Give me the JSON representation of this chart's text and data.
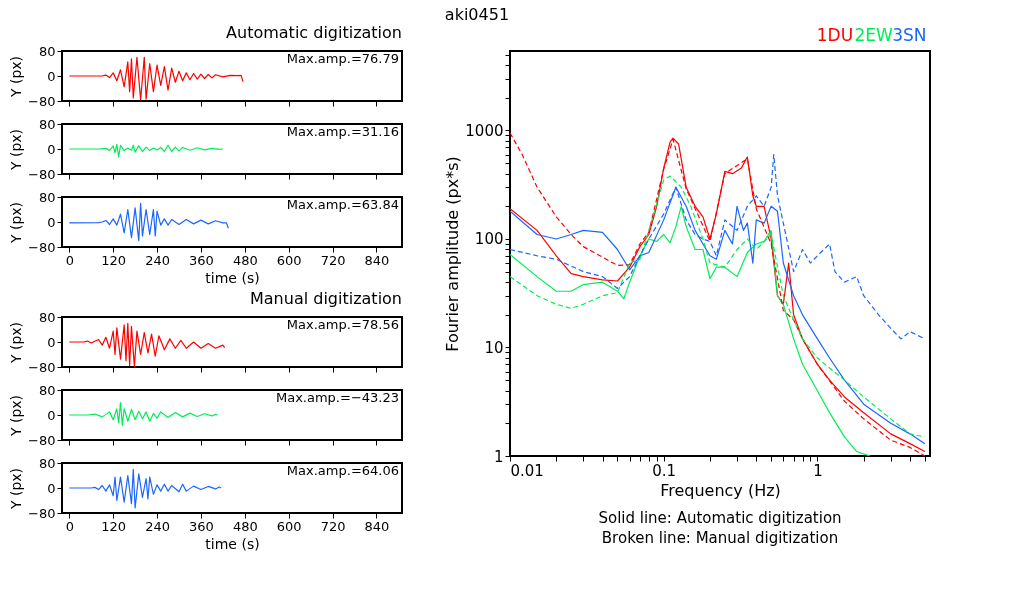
{
  "chart_data": [
    {
      "type": "line",
      "title": "Automatic digitization",
      "ylabel": "Y (px)",
      "annotations": [
        "Max.amp.=76.79"
      ],
      "xlim": [
        -20,
        910
      ],
      "ylim": [
        -80,
        80
      ],
      "xticks": [
        0,
        120,
        240,
        360,
        480,
        600,
        720,
        840
      ],
      "yticks": [
        -80,
        0,
        80
      ],
      "tick_labels": "y",
      "series": [
        {
          "color": "#ff0000",
          "x": [
            0,
            90,
            100,
            110,
            120,
            130,
            140,
            150,
            160,
            165,
            170,
            175,
            185,
            195,
            205,
            210,
            220,
            230,
            240,
            250,
            260,
            270,
            280,
            290,
            300,
            310,
            320,
            330,
            340,
            350,
            360,
            370,
            380,
            390,
            400,
            420,
            440,
            460,
            470,
            475
          ],
          "values": [
            0,
            0,
            3,
            -5,
            10,
            -15,
            20,
            -35,
            45,
            -50,
            55,
            -70,
            60,
            -76,
            60,
            -74,
            40,
            -50,
            35,
            -30,
            30,
            -45,
            25,
            -20,
            15,
            -15,
            10,
            -12,
            8,
            -10,
            6,
            -8,
            5,
            -6,
            4,
            -3,
            2,
            1,
            2,
            -18
          ]
        }
      ]
    },
    {
      "type": "line",
      "ylabel": "Y (px)",
      "annotations": [
        "Max.amp.=31.16"
      ],
      "xlim": [
        -20,
        910
      ],
      "ylim": [
        -80,
        80
      ],
      "xticks": [
        0,
        120,
        240,
        360,
        480,
        600,
        720,
        840
      ],
      "yticks": [
        -80,
        0,
        80
      ],
      "tick_labels": "y",
      "series": [
        {
          "color": "#00ee55",
          "x": [
            0,
            80,
            100,
            110,
            120,
            125,
            130,
            135,
            140,
            150,
            160,
            170,
            175,
            180,
            190,
            200,
            210,
            220,
            230,
            240,
            250,
            260,
            270,
            280,
            290,
            300,
            310,
            330,
            350,
            370,
            390,
            410,
            420
          ],
          "values": [
            0,
            0,
            2,
            -5,
            10,
            -12,
            15,
            -25,
            12,
            -5,
            3,
            -4,
            12,
            -10,
            10,
            -8,
            6,
            -5,
            3,
            -3,
            5,
            -8,
            12,
            -8,
            6,
            -6,
            5,
            -4,
            4,
            -3,
            2,
            -1,
            0
          ]
        }
      ]
    },
    {
      "type": "line",
      "ylabel": "Y (px)",
      "xlabel": "time (s)",
      "annotations": [
        "Max.amp.=63.84"
      ],
      "xlim": [
        -20,
        910
      ],
      "ylim": [
        -80,
        80
      ],
      "xticks": [
        0,
        120,
        240,
        360,
        480,
        600,
        720,
        840
      ],
      "yticks": [
        -80,
        0,
        80
      ],
      "series": [
        {
          "color": "#1a66ff",
          "x": [
            0,
            80,
            90,
            100,
            110,
            120,
            130,
            140,
            150,
            160,
            170,
            180,
            190,
            195,
            200,
            210,
            220,
            230,
            235,
            240,
            250,
            260,
            270,
            280,
            300,
            320,
            340,
            360,
            380,
            400,
            420,
            430,
            435
          ],
          "values": [
            -3,
            -2,
            0,
            5,
            -8,
            10,
            -10,
            25,
            -35,
            40,
            -50,
            45,
            -60,
            60,
            -45,
            40,
            -40,
            40,
            -45,
            35,
            -10,
            10,
            -10,
            8,
            -8,
            8,
            -6,
            6,
            -6,
            4,
            -3,
            -3,
            -20
          ]
        }
      ]
    },
    {
      "type": "line",
      "title": "Manual digitization",
      "ylabel": "Y (px)",
      "annotations": [
        "Max.amp.=78.56"
      ],
      "xlim": [
        -20,
        910
      ],
      "ylim": [
        -80,
        80
      ],
      "xticks": [
        0,
        120,
        240,
        360,
        480,
        600,
        720,
        840
      ],
      "yticks": [
        -80,
        0,
        80
      ],
      "tick_labels": "y",
      "series": [
        {
          "color": "#ff0000",
          "x": [
            0,
            40,
            50,
            60,
            80,
            90,
            100,
            110,
            120,
            125,
            130,
            140,
            150,
            155,
            160,
            165,
            170,
            178,
            185,
            195,
            205,
            215,
            225,
            235,
            245,
            260,
            275,
            290,
            305,
            320,
            340,
            360,
            380,
            400,
            420,
            425
          ],
          "values": [
            0,
            0,
            3,
            -3,
            8,
            -10,
            15,
            -20,
            35,
            -40,
            45,
            -55,
            55,
            -60,
            60,
            -75,
            50,
            -78,
            35,
            -40,
            30,
            -35,
            25,
            -45,
            20,
            -25,
            10,
            -20,
            5,
            -20,
            0,
            -20,
            -5,
            -20,
            -10,
            -18
          ]
        }
      ]
    },
    {
      "type": "line",
      "ylabel": "Y (px)",
      "annotations": [
        "Max.amp.=−43.23"
      ],
      "xlim": [
        -20,
        910
      ],
      "ylim": [
        -80,
        80
      ],
      "xticks": [
        0,
        120,
        240,
        360,
        480,
        600,
        720,
        840
      ],
      "yticks": [
        -80,
        0,
        80
      ],
      "tick_labels": "y",
      "series": [
        {
          "color": "#00ee55",
          "x": [
            0,
            50,
            70,
            90,
            110,
            120,
            130,
            135,
            140,
            145,
            150,
            160,
            170,
            180,
            190,
            200,
            210,
            220,
            230,
            240,
            250,
            270,
            290,
            310,
            330,
            350,
            370,
            390,
            400,
            405
          ],
          "values": [
            0,
            0,
            3,
            -6,
            10,
            -15,
            20,
            -25,
            40,
            -33,
            20,
            -20,
            18,
            -15,
            12,
            -12,
            10,
            -20,
            5,
            -10,
            10,
            -8,
            8,
            -6,
            6,
            -5,
            4,
            -3,
            2,
            0
          ]
        }
      ]
    },
    {
      "type": "line",
      "ylabel": "Y (px)",
      "xlabel": "time (s)",
      "annotations": [
        "Max.amp.=64.06"
      ],
      "xlim": [
        -20,
        910
      ],
      "ylim": [
        -80,
        80
      ],
      "xticks": [
        0,
        120,
        240,
        360,
        480,
        600,
        720,
        840
      ],
      "yticks": [
        -80,
        0,
        80
      ],
      "series": [
        {
          "color": "#1a66ff",
          "x": [
            0,
            60,
            70,
            80,
            90,
            100,
            110,
            120,
            125,
            130,
            140,
            150,
            160,
            170,
            175,
            180,
            190,
            200,
            210,
            215,
            220,
            230,
            240,
            250,
            260,
            270,
            280,
            300,
            310,
            320,
            340,
            360,
            380,
            400,
            410,
            415
          ],
          "values": [
            0,
            0,
            2,
            -5,
            8,
            -10,
            10,
            -25,
            35,
            -40,
            35,
            -45,
            40,
            -50,
            60,
            -64,
            45,
            -30,
            30,
            -35,
            35,
            -20,
            10,
            -10,
            12,
            -10,
            8,
            -12,
            12,
            -10,
            6,
            -5,
            5,
            -3,
            3,
            0
          ]
        }
      ]
    },
    {
      "type": "line",
      "title": "aki0451",
      "xlabel": "Frequency (Hz)",
      "ylabel": "Fourier amplitude (px*s)",
      "log": "xy",
      "legend": "top right",
      "annotations": [
        "Solid line: Automatic digitization",
        "Broken line: Manual digitization"
      ],
      "xlim": [
        0.01,
        5.4
      ],
      "ylim": [
        1,
        5400
      ],
      "xticks": [
        0.01,
        {
          "value": 0.02,
          "label": null
        },
        {
          "value": 0.03,
          "label": null
        },
        {
          "value": 0.04,
          "label": null
        },
        {
          "value": 0.05,
          "label": null
        },
        {
          "value": 0.06,
          "label": null
        },
        {
          "value": 0.07,
          "label": null
        },
        {
          "value": 0.08,
          "label": null
        },
        {
          "value": 0.09,
          "label": null
        },
        0.1,
        {
          "value": 0.2,
          "label": null
        },
        {
          "value": 0.3,
          "label": null
        },
        {
          "value": 0.4,
          "label": null
        },
        {
          "value": 0.5,
          "label": null
        },
        {
          "value": 0.6,
          "label": null
        },
        {
          "value": 0.7,
          "label": null
        },
        {
          "value": 0.8,
          "label": null
        },
        {
          "value": 0.9,
          "label": null
        },
        1,
        {
          "value": 2,
          "label": null
        },
        {
          "value": 3,
          "label": null
        },
        {
          "value": 4,
          "label": null
        },
        {
          "value": 5,
          "label": null
        }
      ],
      "yticks": [
        1,
        {
          "value": 2,
          "label": null
        },
        {
          "value": 3,
          "label": null
        },
        {
          "value": 4,
          "label": null
        },
        {
          "value": 5,
          "label": null
        },
        {
          "value": 6,
          "label": null
        },
        {
          "value": 7,
          "label": null
        },
        {
          "value": 8,
          "label": null
        },
        {
          "value": 9,
          "label": null
        },
        10,
        {
          "value": 20,
          "label": null
        },
        {
          "value": 30,
          "label": null
        },
        {
          "value": 40,
          "label": null
        },
        {
          "value": 50,
          "label": null
        },
        {
          "value": 60,
          "label": null
        },
        {
          "value": 70,
          "label": null
        },
        {
          "value": 80,
          "label": null
        },
        {
          "value": 90,
          "label": null
        },
        100,
        {
          "value": 200,
          "label": null
        },
        {
          "value": 300,
          "label": null
        },
        {
          "value": 400,
          "label": null
        },
        {
          "value": 500,
          "label": null
        },
        {
          "value": 600,
          "label": null
        },
        {
          "value": 700,
          "label": null
        },
        {
          "value": 800,
          "label": null
        },
        {
          "value": 900,
          "label": null
        },
        1000,
        {
          "value": 2000,
          "label": null
        },
        {
          "value": 3000,
          "label": null
        },
        {
          "value": 4000,
          "label": null
        },
        {
          "value": 5000,
          "label": null
        }
      ],
      "series": [
        {
          "name": "1DU",
          "color": "#ff0000",
          "line_style": "solid",
          "x": [
            0.01,
            0.015,
            0.02,
            0.025,
            0.03,
            0.04,
            0.05,
            0.06,
            0.07,
            0.08,
            0.09,
            0.1,
            0.11,
            0.115,
            0.125,
            0.14,
            0.16,
            0.18,
            0.2,
            0.22,
            0.25,
            0.28,
            0.32,
            0.35,
            0.38,
            0.4,
            0.45,
            0.5,
            0.55,
            0.6,
            0.65,
            0.7,
            0.8,
            0.9,
            1.0,
            1.2,
            1.5,
            2,
            3,
            4,
            5
          ],
          "values": [
            190,
            120,
            70,
            48,
            45,
            42,
            41,
            55,
            85,
            110,
            200,
            450,
            780,
            850,
            750,
            300,
            200,
            160,
            100,
            170,
            420,
            400,
            450,
            570,
            250,
            200,
            200,
            100,
            30,
            25,
            60,
            20,
            12,
            9,
            7,
            5,
            3.5,
            2.5,
            1.6,
            1.3,
            1.1
          ]
        },
        {
          "name": "2EW",
          "color": "#00ee55",
          "line_style": "solid",
          "x": [
            0.01,
            0.015,
            0.02,
            0.025,
            0.03,
            0.04,
            0.05,
            0.055,
            0.06,
            0.07,
            0.08,
            0.09,
            0.1,
            0.11,
            0.12,
            0.13,
            0.14,
            0.16,
            0.18,
            0.2,
            0.22,
            0.25,
            0.3,
            0.35,
            0.4,
            0.45,
            0.5,
            0.55,
            0.6,
            0.7,
            0.8,
            1.0,
            1.2,
            1.5,
            1.8,
            2.2
          ],
          "values": [
            72,
            45,
            33,
            33,
            38,
            40,
            33,
            28,
            40,
            70,
            100,
            95,
            110,
            92,
            130,
            200,
            130,
            80,
            80,
            43,
            55,
            55,
            45,
            75,
            90,
            95,
            120,
            30,
            25,
            12,
            7,
            4,
            2.5,
            1.5,
            1.1,
            1.0
          ]
        },
        {
          "name": "3SN",
          "color": "#1a66ff",
          "line_style": "solid",
          "x": [
            0.01,
            0.015,
            0.02,
            0.025,
            0.03,
            0.04,
            0.05,
            0.06,
            0.07,
            0.08,
            0.1,
            0.12,
            0.14,
            0.16,
            0.18,
            0.2,
            0.22,
            0.25,
            0.28,
            0.3,
            0.33,
            0.35,
            0.38,
            0.4,
            0.45,
            0.5,
            0.55,
            0.6,
            0.7,
            0.8,
            1,
            1.2,
            1.5,
            2,
            3,
            4,
            5
          ],
          "values": [
            180,
            110,
            100,
            110,
            120,
            115,
            80,
            52,
            70,
            75,
            150,
            300,
            200,
            120,
            90,
            70,
            65,
            120,
            90,
            200,
            120,
            140,
            60,
            150,
            140,
            200,
            180,
            60,
            30,
            20,
            12,
            8,
            5,
            3,
            2,
            1.6,
            1.3
          ]
        },
        {
          "color": "#ff0000",
          "line_style": "dashed",
          "x": [
            0.01,
            0.012,
            0.015,
            0.02,
            0.025,
            0.03,
            0.04,
            0.05,
            0.06,
            0.07,
            0.08,
            0.1,
            0.115,
            0.14,
            0.2,
            0.25,
            0.35,
            0.4,
            0.5,
            0.6,
            0.7,
            0.8,
            1,
            1.5,
            2,
            3,
            4,
            5
          ],
          "values": [
            950,
            600,
            300,
            160,
            110,
            85,
            68,
            57,
            58,
            90,
            115,
            440,
            830,
            290,
            95,
            400,
            550,
            190,
            90,
            22,
            18,
            12,
            7,
            3.2,
            2.2,
            1.4,
            1.2,
            1.0
          ]
        },
        {
          "color": "#00ee55",
          "line_style": "dashed",
          "x": [
            0.01,
            0.015,
            0.02,
            0.025,
            0.03,
            0.04,
            0.05,
            0.06,
            0.07,
            0.08,
            0.1,
            0.11,
            0.13,
            0.15,
            0.18,
            0.2,
            0.25,
            0.3,
            0.35,
            0.4,
            0.5,
            0.6,
            0.7,
            0.8,
            1,
            1.5,
            2,
            3,
            4,
            5
          ],
          "values": [
            45,
            30,
            25,
            23,
            25,
            30,
            32,
            60,
            65,
            120,
            350,
            380,
            300,
            200,
            100,
            60,
            55,
            80,
            100,
            80,
            110,
            30,
            18,
            12,
            8,
            5,
            3.5,
            2.2,
            1.6,
            1.5
          ]
        },
        {
          "color": "#1a66ff",
          "line_style": "dashed",
          "x": [
            0.01,
            0.015,
            0.02,
            0.03,
            0.04,
            0.05,
            0.06,
            0.07,
            0.08,
            0.1,
            0.12,
            0.14,
            0.16,
            0.18,
            0.2,
            0.22,
            0.25,
            0.3,
            0.35,
            0.4,
            0.45,
            0.5,
            0.52,
            0.55,
            0.6,
            0.7,
            0.8,
            0.9,
            1.0,
            1.1,
            1.2,
            1.3,
            1.5,
            1.8,
            2.0,
            2.5,
            3,
            3.5,
            4,
            5
          ],
          "values": [
            80,
            70,
            65,
            50,
            45,
            35,
            45,
            70,
            100,
            170,
            300,
            150,
            110,
            100,
            95,
            70,
            150,
            120,
            200,
            250,
            200,
            300,
            600,
            250,
            140,
            50,
            80,
            60,
            70,
            80,
            90,
            50,
            40,
            45,
            30,
            20,
            15,
            12,
            14,
            12
          ]
        }
      ]
    }
  ]
}
